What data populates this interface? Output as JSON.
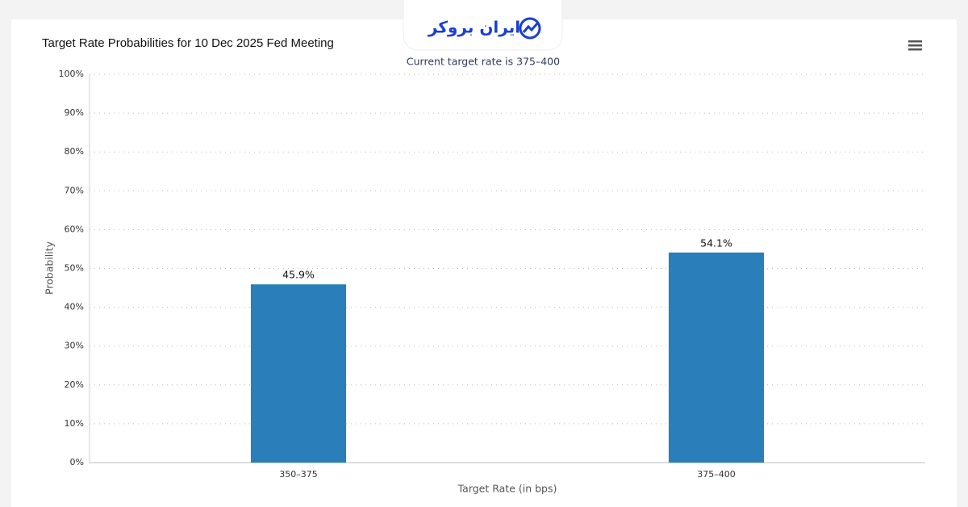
{
  "logo": "ایران بروکر",
  "chart_data": {
    "type": "bar",
    "title": "Target Rate Probabilities for 10 Dec 2025 Fed Meeting",
    "subtitle": "Current target rate is 375–400",
    "x_label": "Target Rate (in bps)",
    "y_label": "Probability",
    "categories": [
      "350–375",
      "375–400"
    ],
    "values": [
      45.9,
      54.1
    ],
    "value_labels": [
      "45.9%",
      "54.1%"
    ],
    "color": "#2a7fba",
    "ylim": [
      0,
      100
    ],
    "yticks": [
      {
        "value": 0,
        "label": "0%"
      },
      {
        "value": 10,
        "label": "10%"
      },
      {
        "value": 20,
        "label": "20%"
      },
      {
        "value": 30,
        "label": "30%"
      },
      {
        "value": 40,
        "label": "40%"
      },
      {
        "value": 50,
        "label": "50%"
      },
      {
        "value": 60,
        "label": "60%"
      },
      {
        "value": 70,
        "label": "70%"
      },
      {
        "value": 80,
        "label": "80%"
      },
      {
        "value": 90,
        "label": "90%"
      },
      {
        "value": 100,
        "label": "100%"
      }
    ],
    "grid": true
  }
}
